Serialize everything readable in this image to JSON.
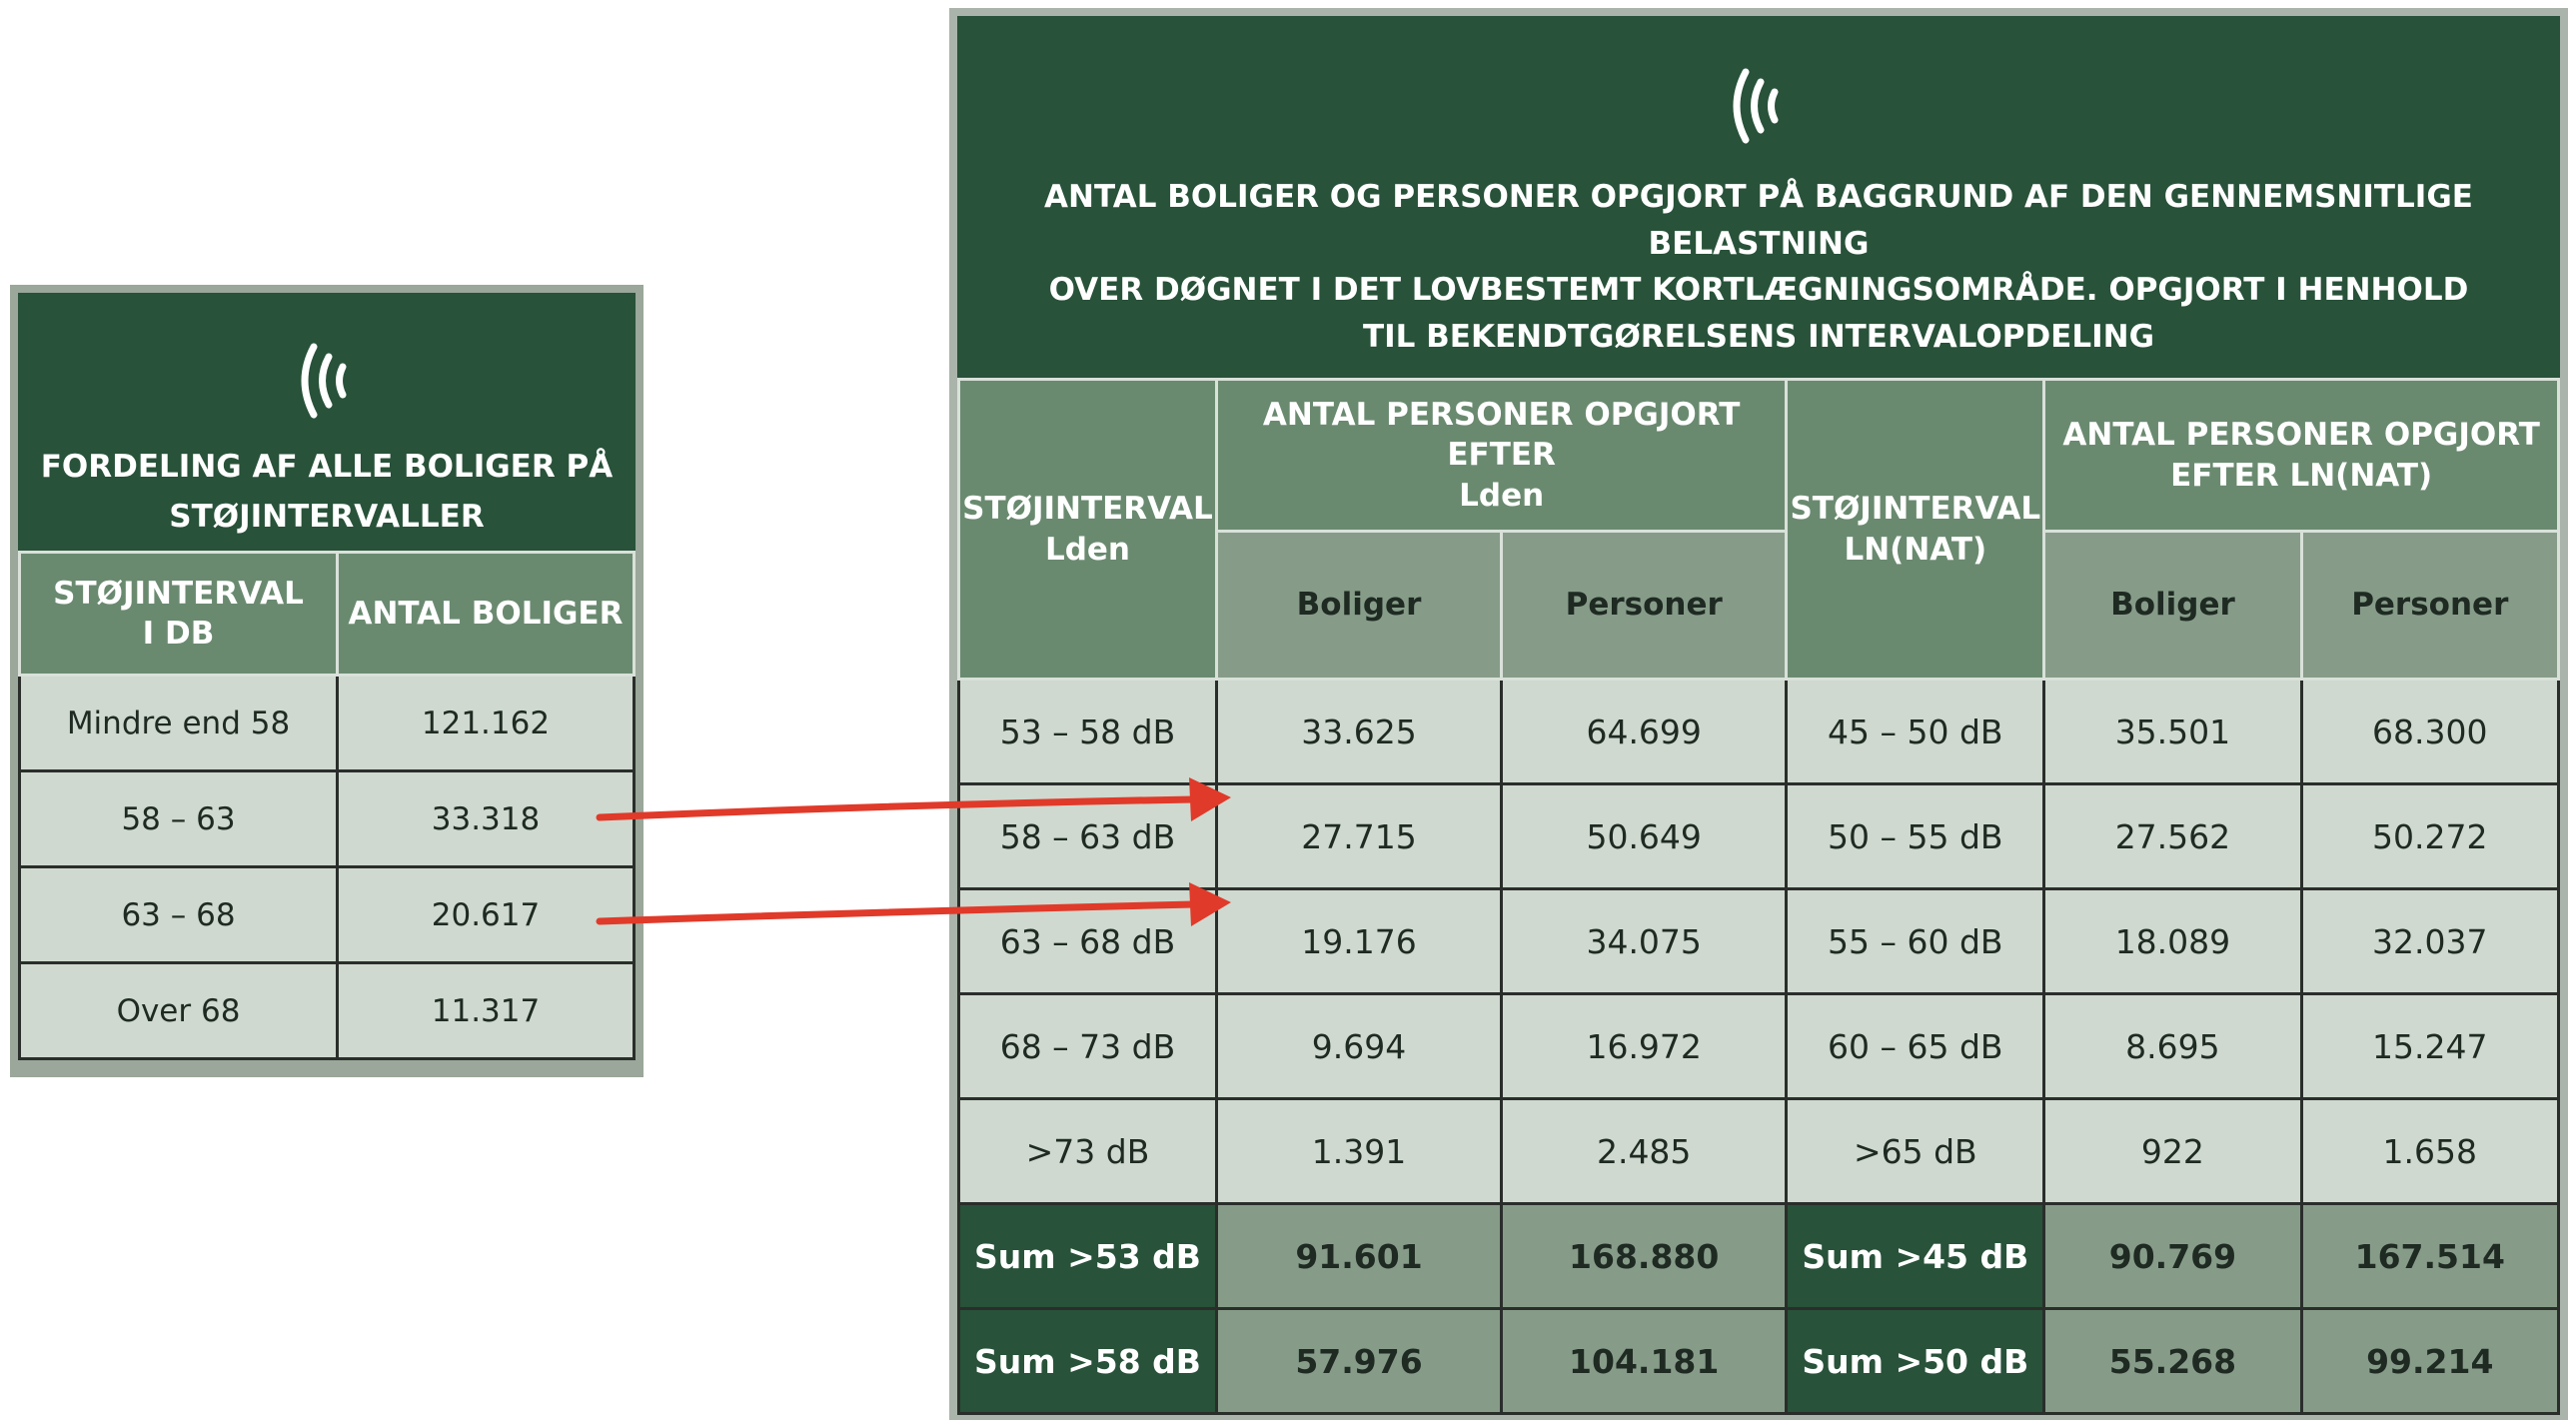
{
  "left": {
    "title_line1": "FORDELING AF ALLE BOLIGER PÅ",
    "title_line2": "STØJINTERVALLER",
    "col1_line1": "STØJINTERVAL",
    "col1_line2": "I DB",
    "col2": "ANTAL BOLIGER",
    "rows": [
      {
        "interval": "Mindre end 58",
        "count": "121.162"
      },
      {
        "interval": "58 – 63",
        "count": "33.318"
      },
      {
        "interval": "63 – 68",
        "count": "20.617"
      },
      {
        "interval": "Over 68",
        "count": "11.317"
      }
    ]
  },
  "right": {
    "title_line1": "ANTAL BOLIGER OG PERSONER OPGJORT PÅ BAGGRUND AF DEN GENNEMSNITLIGE BELASTNING",
    "title_line2": "OVER DØGNET I DET LOVBESTEMT KORTLÆGNINGSOMRÅDE. OPGJORT I HENHOLD",
    "title_line3": "TIL BEKENDTGØRELSENS INTERVALOPDELING",
    "col_interval_lden": "STØJINTERVAL",
    "col_interval_lden_sub": "Lden",
    "group_lden": "ANTAL PERSONER OPGJORT EFTER",
    "group_lden_sub": "Lden",
    "col_interval_ln": "STØJINTERVAL",
    "col_interval_ln_sub": "LN(NAT)",
    "group_ln_line1": "ANTAL PERSONER OPGJORT",
    "group_ln_line2": "EFTER LN(NAT)",
    "sub_boliger": "Boliger",
    "sub_personer": "Personer",
    "rows": [
      {
        "lden": "53 – 58 dB",
        "b1": "33.625",
        "p1": "64.699",
        "ln": "45 – 50 dB",
        "b2": "35.501",
        "p2": "68.300"
      },
      {
        "lden": "58 – 63 dB",
        "b1": "27.715",
        "p1": "50.649",
        "ln": "50 – 55 dB",
        "b2": "27.562",
        "p2": "50.272"
      },
      {
        "lden": "63 – 68 dB",
        "b1": "19.176",
        "p1": "34.075",
        "ln": "55 – 60 dB",
        "b2": "18.089",
        "p2": "32.037"
      },
      {
        "lden": "68 – 73 dB",
        "b1": "9.694",
        "p1": "16.972",
        "ln": "60 – 65 dB",
        "b2": "8.695",
        "p2": "15.247"
      },
      {
        "lden": ">73 dB",
        "b1": "1.391",
        "p1": "2.485",
        "ln": ">65 dB",
        "b2": "922",
        "p2": "1.658"
      }
    ],
    "sums": [
      {
        "lden": "Sum >53 dB",
        "b1": "91.601",
        "p1": "168.880",
        "ln": "Sum >45 dB",
        "b2": "90.769",
        "p2": "167.514"
      },
      {
        "lden": "Sum >58 dB",
        "b1": "57.976",
        "p1": "104.181",
        "ln": "Sum >50 dB",
        "b2": "55.268",
        "p2": "99.214"
      }
    ]
  },
  "colors": {
    "header_dark_green": "#285239",
    "header_mid_green": "#6a8a70",
    "cell_light": "#cfd9cf",
    "arrow_red": "#e03a2a"
  },
  "icons": [
    "sound-wave-icon"
  ]
}
